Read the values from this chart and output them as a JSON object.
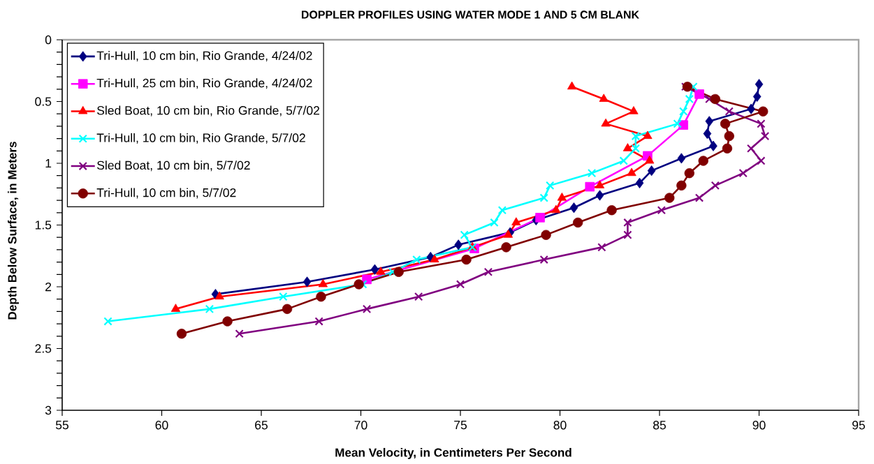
{
  "chart_data": {
    "type": "line",
    "title": "DOPPLER PROFILES USING WATER MODE 1 AND 5 CM BLANK",
    "xlabel": "Mean Velocity, in Centimeters Per Second",
    "ylabel": "Depth Below Surface, in Meters",
    "xlim": [
      55,
      95
    ],
    "xticks": [
      55,
      60,
      65,
      70,
      75,
      80,
      85,
      90,
      95
    ],
    "ylim": [
      3,
      0
    ],
    "yticks": [
      0,
      0.5,
      1,
      1.5,
      2,
      2.5,
      3
    ],
    "legend": "top left",
    "line_style": "solid",
    "series": [
      {
        "name": "Tri-Hull, 10 cm bin, Rio Grande, 4/24/02",
        "color": "#000080",
        "marker": "diamond",
        "x": [
          90.0,
          89.9,
          89.6,
          87.5,
          87.4,
          87.7,
          86.1,
          84.6,
          84.0,
          82.0,
          80.7,
          78.8,
          77.5,
          74.9,
          73.5,
          70.7,
          67.3,
          62.7
        ],
        "values": [
          0.36,
          0.46,
          0.56,
          0.66,
          0.76,
          0.86,
          0.96,
          1.06,
          1.16,
          1.26,
          1.36,
          1.46,
          1.56,
          1.66,
          1.76,
          1.86,
          1.96,
          2.06
        ]
      },
      {
        "name": "Tri-Hull, 25 cm bin, Rio Grande, 4/24/02",
        "color": "#ff00ff",
        "marker": "square",
        "x": [
          87.0,
          86.2,
          84.4,
          81.5,
          79.0,
          75.7,
          70.3
        ],
        "values": [
          0.44,
          0.69,
          0.94,
          1.19,
          1.44,
          1.69,
          1.94
        ]
      },
      {
        "name": "Sled Boat, 10 cm bin, Rio Grande, 5/7/02",
        "color": "#ff0000",
        "marker": "triangle",
        "x": [
          80.6,
          82.2,
          83.7,
          82.3,
          84.4,
          83.4,
          84.5,
          83.6,
          82.0,
          80.1,
          79.8,
          77.8,
          77.4,
          75.6,
          73.7,
          71.0,
          68.1,
          62.9,
          60.7
        ],
        "values": [
          0.38,
          0.48,
          0.58,
          0.68,
          0.78,
          0.88,
          0.98,
          1.08,
          1.18,
          1.28,
          1.38,
          1.48,
          1.58,
          1.68,
          1.78,
          1.88,
          1.98,
          2.08,
          2.18
        ]
      },
      {
        "name": "Tri-Hull, 10 cm bin, Rio Grande, 5/7/02",
        "color": "#00ffff",
        "marker": "cross",
        "x": [
          86.7,
          86.5,
          86.2,
          85.9,
          83.8,
          83.8,
          83.2,
          81.6,
          79.5,
          79.2,
          77.1,
          76.7,
          75.2,
          75.6,
          72.8,
          71.6,
          70.1,
          66.1,
          62.4,
          57.3
        ],
        "values": [
          0.38,
          0.48,
          0.58,
          0.68,
          0.78,
          0.88,
          0.98,
          1.08,
          1.18,
          1.28,
          1.38,
          1.48,
          1.58,
          1.68,
          1.78,
          1.88,
          1.98,
          2.08,
          2.18,
          2.28
        ]
      },
      {
        "name": "Sled Boat, 10 cm bin, 5/7/02",
        "color": "#800080",
        "marker": "cross",
        "x": [
          86.3,
          87.5,
          88.5,
          90.1,
          90.3,
          89.6,
          90.1,
          89.2,
          87.8,
          87.0,
          85.1,
          83.4,
          83.4,
          82.1,
          79.2,
          76.4,
          75.0,
          72.9,
          70.3,
          67.9,
          63.9
        ],
        "values": [
          0.38,
          0.48,
          0.58,
          0.68,
          0.78,
          0.88,
          0.98,
          1.08,
          1.18,
          1.28,
          1.38,
          1.48,
          1.58,
          1.68,
          1.78,
          1.88,
          1.98,
          2.08,
          2.18,
          2.28,
          2.38
        ]
      },
      {
        "name": "Tri-Hull, 10 cm bin, 5/7/02",
        "color": "#800000",
        "marker": "circle",
        "x": [
          86.4,
          87.8,
          90.2,
          88.3,
          88.5,
          88.4,
          87.2,
          86.5,
          86.1,
          85.5,
          82.6,
          80.9,
          79.3,
          77.3,
          75.3,
          71.9,
          69.9,
          68.0,
          66.3,
          63.3,
          61.0
        ],
        "values": [
          0.38,
          0.48,
          0.58,
          0.68,
          0.78,
          0.88,
          0.98,
          1.08,
          1.18,
          1.28,
          1.38,
          1.48,
          1.58,
          1.68,
          1.78,
          1.88,
          1.98,
          2.08,
          2.18,
          2.28,
          2.38
        ]
      }
    ]
  }
}
